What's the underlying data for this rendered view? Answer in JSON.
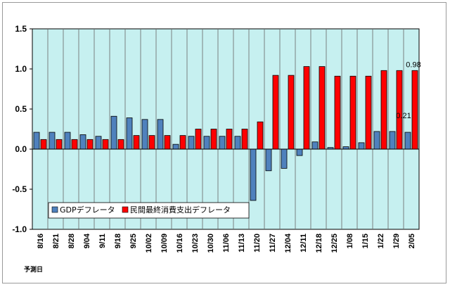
{
  "chart_data": {
    "type": "bar",
    "xlabel": "予測日",
    "ylabel": "",
    "ylim": [
      -1.0,
      1.5
    ],
    "yticks": [
      "1.5",
      "1.0",
      "0.5",
      "0.0",
      "-0.5",
      "-1.0"
    ],
    "grid": "vertical",
    "legend_position": "bottom-left",
    "categories": [
      "8/16",
      "8/21",
      "8/28",
      "9/04",
      "9/11",
      "9/18",
      "9/25",
      "10/02",
      "10/09",
      "10/16",
      "10/23",
      "10/30",
      "11/06",
      "11/13",
      "11/20",
      "11/27",
      "12/04",
      "12/11",
      "12/18",
      "12/25",
      "1/08",
      "1/15",
      "1/22",
      "1/29",
      "2/05"
    ],
    "series": [
      {
        "name": "GDPデフレータ",
        "color": "#4f81bd",
        "values": [
          0.21,
          0.21,
          0.21,
          0.18,
          0.16,
          0.41,
          0.39,
          0.37,
          0.37,
          0.06,
          0.16,
          0.16,
          0.16,
          0.16,
          -0.64,
          -0.27,
          -0.24,
          -0.08,
          0.09,
          0.02,
          0.03,
          0.08,
          0.22,
          0.22,
          0.21
        ]
      },
      {
        "name": "民間最終消費支出デフレータ",
        "color": "#ff0000",
        "values": [
          0.12,
          0.12,
          0.12,
          0.12,
          0.12,
          0.12,
          0.17,
          0.17,
          0.17,
          0.17,
          0.25,
          0.25,
          0.25,
          0.25,
          0.34,
          0.92,
          0.92,
          1.03,
          1.03,
          0.91,
          0.91,
          0.91,
          0.98,
          0.98,
          0.98
        ]
      }
    ],
    "annotations": [
      "0.21",
      "0.98"
    ]
  }
}
